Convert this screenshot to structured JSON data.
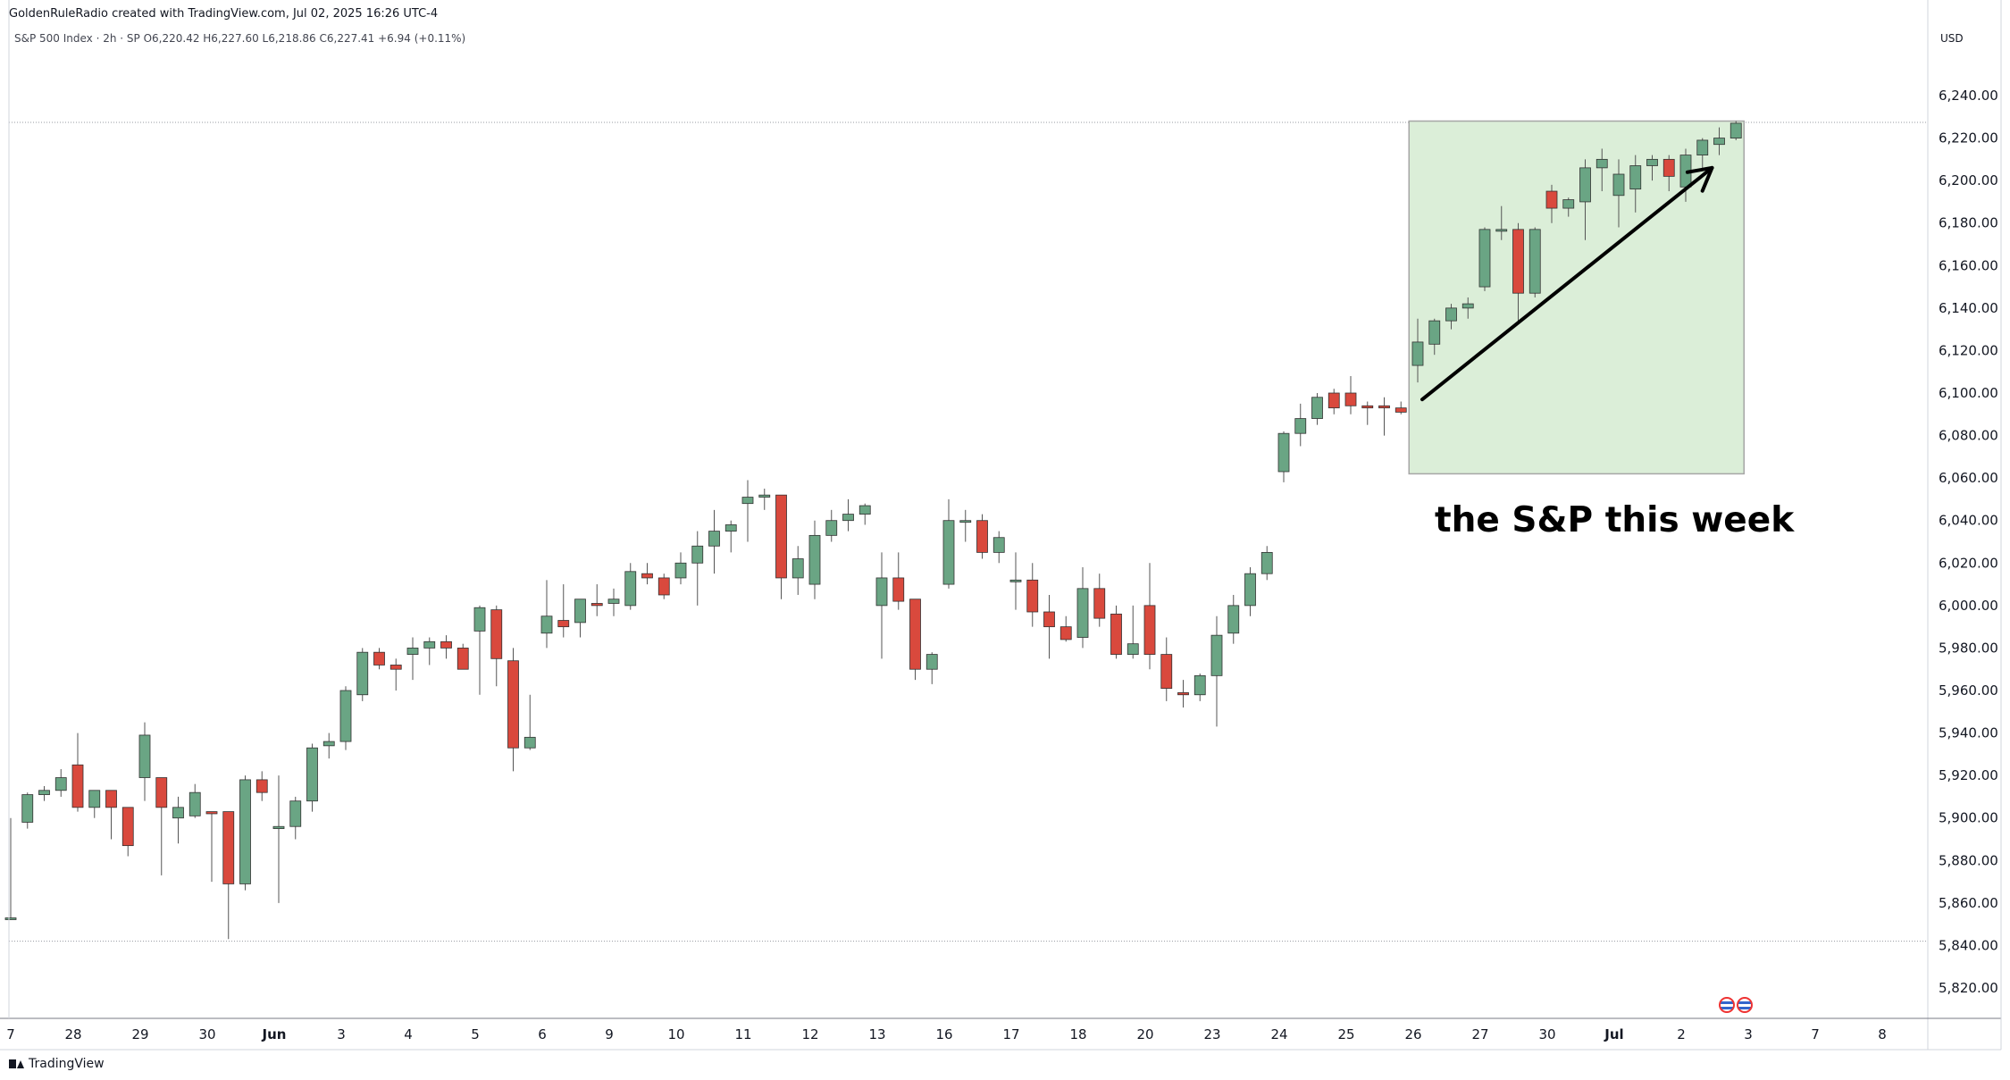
{
  "header": {
    "attribution": "GoldenRuleRadio created with TradingView.com, Jul 02, 2025 16:26 UTC-4"
  },
  "legend": {
    "symbol_line": "S&P 500 Index · 2h · SP  O6,220.42  H6,227.60  L6,218.86  C6,227.41  +6.94 (+0.11%)"
  },
  "axis": {
    "currency": "USD"
  },
  "annotation": {
    "text": "the S&P this week"
  },
  "footer": {
    "brand": "TradingView"
  },
  "colors": {
    "up": "#6aa584",
    "down": "#d9493d",
    "highlight_fill": "#dbeed8",
    "highlight_border": "#a6a6a6",
    "arrow": "#000000"
  },
  "icons": [
    "us-flag-icon",
    "us-flag-icon"
  ],
  "chart_data": {
    "type": "candlestick",
    "ylim": [
      5800,
      6280
    ],
    "y_ticks": [
      5820,
      5840,
      5860,
      5880,
      5900,
      5920,
      5940,
      5960,
      5980,
      6000,
      6020,
      6040,
      6060,
      6080,
      6100,
      6120,
      6140,
      6160,
      6180,
      6200,
      6220,
      6240
    ],
    "y_tick_labels": [
      "5,820.00",
      "5,840.00",
      "5,860.00",
      "5,880.00",
      "5,900.00",
      "5,920.00",
      "5,940.00",
      "5,960.00",
      "5,980.00",
      "6,000.00",
      "6,020.00",
      "6,040.00",
      "6,060.00",
      "6,080.00",
      "6,100.00",
      "6,120.00",
      "6,140.00",
      "6,160.00",
      "6,180.00",
      "6,200.00",
      "6,220.00",
      "6,240.00"
    ],
    "x_tick_labels": [
      "7",
      "28",
      "29",
      "30",
      "Jun",
      "3",
      "4",
      "5",
      "6",
      "9",
      "10",
      "11",
      "12",
      "13",
      "16",
      "17",
      "18",
      "19",
      "20",
      "23",
      "24",
      "25",
      "26",
      "27",
      "30",
      "Jul",
      "2",
      "3",
      "7",
      "8"
    ],
    "bold_x_ticks": [
      "Jun",
      "Jul"
    ],
    "reference_lines": [
      6227.4,
      5842
    ],
    "candles": [
      [
        5853,
        5900,
        5852,
        5853
      ],
      [
        5898,
        5912,
        5895,
        5911
      ],
      [
        5911,
        5915,
        5908,
        5913
      ],
      [
        5913,
        5923,
        5910,
        5919
      ],
      [
        5925,
        5940,
        5903,
        5905
      ],
      [
        5905,
        5913,
        5900,
        5913
      ],
      [
        5913,
        5913,
        5890,
        5905
      ],
      [
        5905,
        5905,
        5882,
        5887
      ],
      [
        5919,
        5945,
        5908,
        5939
      ],
      [
        5919,
        5919,
        5873,
        5905
      ],
      [
        5900,
        5910,
        5888,
        5905
      ],
      [
        5901,
        5916,
        5900,
        5912
      ],
      [
        5903,
        5903,
        5870,
        5902
      ],
      [
        5903,
        5903,
        5843,
        5869
      ],
      [
        5869,
        5920,
        5866,
        5918
      ],
      [
        5918,
        5922,
        5908,
        5912
      ],
      [
        5895,
        5920,
        5860,
        5896
      ],
      [
        5896,
        5910,
        5890,
        5908
      ],
      [
        5908,
        5935,
        5903,
        5933
      ],
      [
        5934,
        5940,
        5928,
        5936
      ],
      [
        5936,
        5962,
        5932,
        5960
      ],
      [
        5958,
        5980,
        5955,
        5978
      ],
      [
        5978,
        5980,
        5970,
        5972
      ],
      [
        5972,
        5975,
        5960,
        5970
      ],
      [
        5977,
        5985,
        5965,
        5980
      ],
      [
        5980,
        5985,
        5972,
        5983
      ],
      [
        5983,
        5986,
        5975,
        5980
      ],
      [
        5980,
        5982,
        5970,
        5970
      ],
      [
        5988,
        6000,
        5958,
        5999
      ],
      [
        5998,
        6000,
        5962,
        5975
      ],
      [
        5974,
        5980,
        5922,
        5933
      ],
      [
        5933,
        5958,
        5932,
        5938
      ],
      [
        5987,
        6012,
        5980,
        5995
      ],
      [
        5993,
        6010,
        5985,
        5990
      ],
      [
        5992,
        6003,
        5985,
        6003
      ],
      [
        6001,
        6010,
        5995,
        6000
      ],
      [
        6001,
        6008,
        5995,
        6003
      ],
      [
        6000,
        6020,
        5998,
        6016
      ],
      [
        6015,
        6020,
        6010,
        6013
      ],
      [
        6013,
        6015,
        6003,
        6005
      ],
      [
        6013,
        6025,
        6010,
        6020
      ],
      [
        6020,
        6035,
        6000,
        6028
      ],
      [
        6028,
        6045,
        6015,
        6035
      ],
      [
        6035,
        6040,
        6025,
        6038
      ],
      [
        6048,
        6059,
        6030,
        6051
      ],
      [
        6051,
        6055,
        6045,
        6052
      ],
      [
        6052,
        6052,
        6003,
        6013
      ],
      [
        6013,
        6028,
        6005,
        6022
      ],
      [
        6010,
        6040,
        6003,
        6033
      ],
      [
        6033,
        6045,
        6030,
        6040
      ],
      [
        6040,
        6050,
        6035,
        6043
      ],
      [
        6043,
        6048,
        6038,
        6047
      ],
      [
        6000,
        6025,
        5975,
        6013
      ],
      [
        6013,
        6025,
        5998,
        6002
      ],
      [
        6003,
        6003,
        5965,
        5970
      ],
      [
        5970,
        5978,
        5963,
        5977
      ],
      [
        6010,
        6050,
        6008,
        6040
      ],
      [
        6040,
        6045,
        6030,
        6040
      ],
      [
        6040,
        6043,
        6022,
        6025
      ],
      [
        6025,
        6035,
        6020,
        6032
      ],
      [
        6012,
        6025,
        5998,
        6012
      ],
      [
        6012,
        6020,
        5990,
        5997
      ],
      [
        5997,
        6005,
        5975,
        5990
      ],
      [
        5990,
        5995,
        5983,
        5984
      ],
      [
        5985,
        6018,
        5980,
        6008
      ],
      [
        6008,
        6015,
        5990,
        5994
      ],
      [
        5996,
        6000,
        5975,
        5977
      ],
      [
        5977,
        6000,
        5975,
        5982
      ],
      [
        6000,
        6020,
        5970,
        5977
      ],
      [
        5977,
        5985,
        5955,
        5961
      ],
      [
        5959,
        5965,
        5952,
        5958
      ],
      [
        5958,
        5968,
        5955,
        5967
      ],
      [
        5967,
        5995,
        5943,
        5986
      ],
      [
        5987,
        6005,
        5982,
        6000
      ],
      [
        6000,
        6018,
        5995,
        6015
      ],
      [
        6015,
        6028,
        6012,
        6025
      ],
      [
        6063,
        6082,
        6058,
        6081
      ],
      [
        6081,
        6095,
        6075,
        6088
      ],
      [
        6088,
        6100,
        6085,
        6098
      ],
      [
        6100,
        6102,
        6090,
        6093
      ],
      [
        6100,
        6108,
        6090,
        6094
      ],
      [
        6094,
        6096,
        6085,
        6093
      ],
      [
        6094,
        6098,
        6080,
        6093
      ],
      [
        6093,
        6096,
        6090,
        6091
      ],
      [
        6113,
        6135,
        6105,
        6124
      ],
      [
        6123,
        6135,
        6118,
        6134
      ],
      [
        6134,
        6142,
        6130,
        6140
      ],
      [
        6140,
        6145,
        6135,
        6142
      ],
      [
        6150,
        6178,
        6148,
        6177
      ],
      [
        6177,
        6188,
        6172,
        6177
      ],
      [
        6177,
        6180,
        6133,
        6147
      ],
      [
        6147,
        6178,
        6145,
        6177
      ],
      [
        6195,
        6198,
        6180,
        6187
      ],
      [
        6187,
        6192,
        6183,
        6191
      ],
      [
        6190,
        6210,
        6172,
        6206
      ],
      [
        6206,
        6215,
        6195,
        6210
      ],
      [
        6193,
        6210,
        6178,
        6203
      ],
      [
        6196,
        6212,
        6185,
        6207
      ],
      [
        6207,
        6212,
        6200,
        6210
      ],
      [
        6210,
        6212,
        6195,
        6202
      ],
      [
        6197,
        6215,
        6190,
        6212
      ],
      [
        6212,
        6220,
        6205,
        6219
      ],
      [
        6217,
        6225,
        6212,
        6220
      ],
      [
        6220,
        6228,
        6219,
        6227
      ]
    ],
    "highlight_box": {
      "y_range": [
        6062,
        6228
      ]
    },
    "arrow": {
      "from": [
        6097
      ],
      "to": [
        6206
      ]
    }
  }
}
